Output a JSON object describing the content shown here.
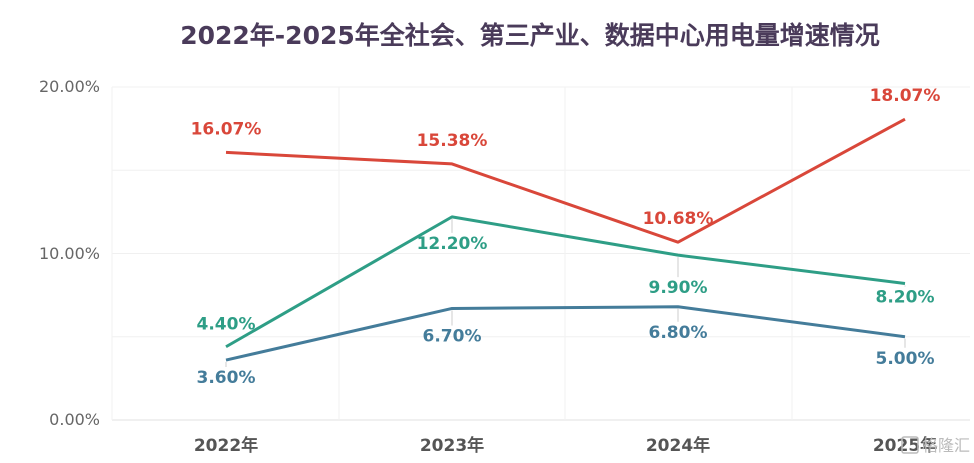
{
  "chart_data": {
    "type": "line",
    "title": "2022年-2025年全社会、第三产业、数据中心用电量增速情况",
    "categories": [
      "2022年",
      "2023年",
      "2024年",
      "2025年"
    ],
    "y_ticks": [
      "0.00%",
      "10.00%",
      "20.00%"
    ],
    "ylim": [
      0,
      20
    ],
    "grid": true,
    "legend": "none",
    "series": [
      {
        "color": "#d9473a",
        "values": [
          16.07,
          15.38,
          10.68,
          18.07
        ],
        "labels": [
          "16.07%",
          "15.38%",
          "10.68%",
          "18.07%"
        ]
      },
      {
        "color": "#2e9e86",
        "values": [
          4.4,
          12.2,
          9.9,
          8.2
        ],
        "labels": [
          "4.40%",
          "12.20%",
          "9.90%",
          "8.20%"
        ]
      },
      {
        "color": "#447c9a",
        "values": [
          3.6,
          6.7,
          6.8,
          5.0
        ],
        "labels": [
          "3.60%",
          "6.70%",
          "6.80%",
          "5.00%"
        ]
      }
    ]
  },
  "watermark": {
    "text": "格隆汇"
  }
}
